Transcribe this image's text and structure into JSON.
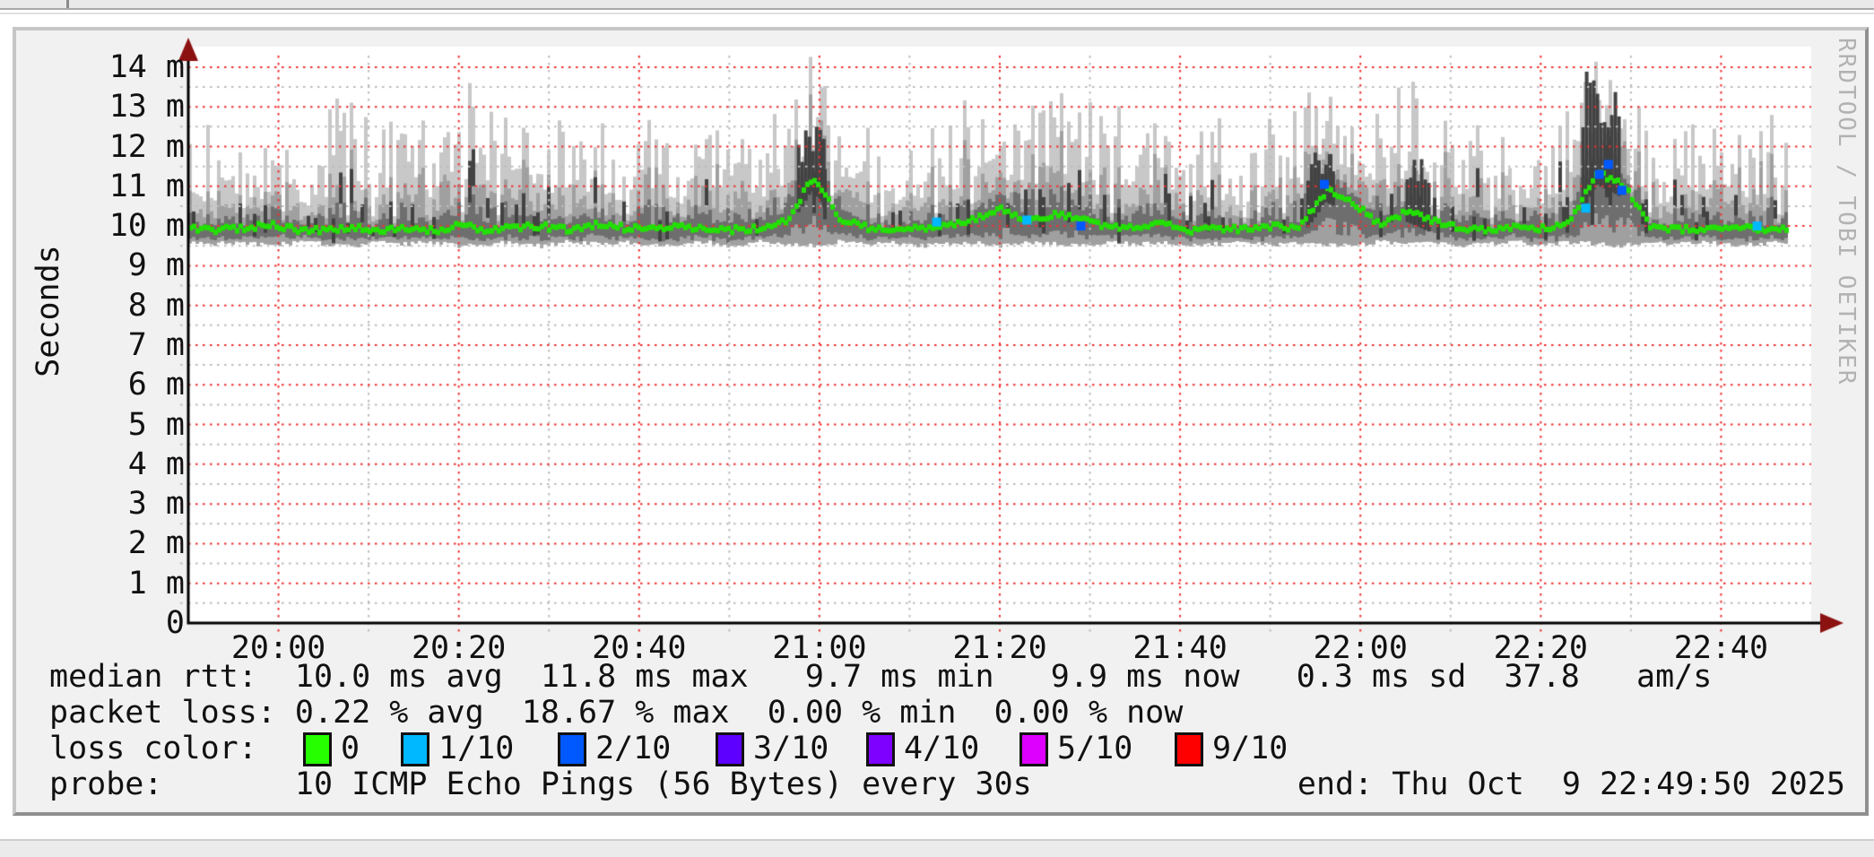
{
  "graph": {
    "y_axis_label": "Seconds",
    "watermark": "RRDTOOL / TOBI OETIKER",
    "legend": {
      "median_line": "median rtt:  10.0 ms avg  11.8 ms max   9.7 ms min   9.9 ms now   0.3 ms sd  37.8   am/s",
      "loss_line": "packet loss: 0.22 % avg  18.67 % max  0.00 % min  0.00 % now",
      "loss_color_label": "loss color:",
      "probe_line": "probe:       10 ICMP Echo Pings (56 Bytes) every 30s",
      "end_line": "end: Thu Oct  9 22:49:50 2025"
    },
    "loss_legend": [
      {
        "label": "0",
        "color": "#26ff00"
      },
      {
        "label": "1/10",
        "color": "#00b8ff"
      },
      {
        "label": "2/10",
        "color": "#0059ff"
      },
      {
        "label": "3/10",
        "color": "#5e00ff"
      },
      {
        "label": "4/10",
        "color": "#7e00ff"
      },
      {
        "label": "5/10",
        "color": "#dd00ff"
      },
      {
        "label": "9/10",
        "color": "#ff0000"
      }
    ]
  },
  "chart_data": {
    "type": "area",
    "title": "",
    "xlabel": "",
    "ylabel": "Seconds",
    "x_start_time": "19:50",
    "x_end_time": "22:49:50",
    "x_ticks": [
      "20:00",
      "20:20",
      "20:40",
      "21:00",
      "21:20",
      "21:40",
      "22:00",
      "22:20",
      "22:40"
    ],
    "x_tick_minutes": [
      10,
      30,
      50,
      70,
      90,
      110,
      130,
      150,
      170
    ],
    "x_minor_minutes": [
      20,
      40,
      60,
      80,
      100,
      120,
      140,
      160
    ],
    "y_ticks": [
      {
        "v": 14,
        "label": "14 m"
      },
      {
        "v": 13,
        "label": "13 m"
      },
      {
        "v": 12,
        "label": "12 m"
      },
      {
        "v": 11,
        "label": "11 m"
      },
      {
        "v": 10,
        "label": "10 m"
      },
      {
        "v": 9,
        "label": "9 m"
      },
      {
        "v": 8,
        "label": "8 m"
      },
      {
        "v": 7,
        "label": "7 m"
      },
      {
        "v": 6,
        "label": "6 m"
      },
      {
        "v": 5,
        "label": "5 m"
      },
      {
        "v": 4,
        "label": "4 m"
      },
      {
        "v": 3,
        "label": "3 m"
      },
      {
        "v": 2,
        "label": "2 m"
      },
      {
        "v": 1,
        "label": "1 m"
      },
      {
        "v": 0,
        "label": "0"
      }
    ],
    "ylim_ms": [
      0,
      14.45
    ],
    "grid": {
      "major_color": "#f03030",
      "minor_color": "#bcbcbc",
      "style": "dotted"
    },
    "sample_interval_min": 3,
    "duration_min": 180,
    "series": [
      {
        "name": "median_rtt_ms",
        "values": [
          9.95,
          9.9,
          9.95,
          10.05,
          9.9,
          9.9,
          9.95,
          9.9,
          9.95,
          9.9,
          10.0,
          9.9,
          9.95,
          10.0,
          9.9,
          10.05,
          9.95,
          9.9,
          10.0,
          9.95,
          9.9,
          9.95,
          10.1,
          11.2,
          10.2,
          9.95,
          9.9,
          9.95,
          10.0,
          10.2,
          10.45,
          10.1,
          10.3,
          10.2,
          9.95,
          10.0,
          10.1,
          9.9,
          9.95,
          9.9,
          10.0,
          9.95,
          10.9,
          10.6,
          10.0,
          10.4,
          10.1,
          9.95,
          9.9,
          10.0,
          9.95,
          10.05,
          11.35,
          11.0,
          9.95,
          9.9,
          9.95,
          9.9,
          9.95,
          9.9
        ]
      },
      {
        "name": "smoke_max_ms",
        "values": [
          12.6,
          12.0,
          11.6,
          12.2,
          11.8,
          12.3,
          13.3,
          12.0,
          12.5,
          12.2,
          12.8,
          13.9,
          12.4,
          13.0,
          12.2,
          12.6,
          12.0,
          12.4,
          11.9,
          12.3,
          12.1,
          12.5,
          12.9,
          14.0,
          12.6,
          12.2,
          12.0,
          12.4,
          12.8,
          13.2,
          13.0,
          12.5,
          13.4,
          12.8,
          12.3,
          13.6,
          12.6,
          12.1,
          12.4,
          11.9,
          12.3,
          12.7,
          13.3,
          12.9,
          12.4,
          13.5,
          13.8,
          12.6,
          12.2,
          12.5,
          12.0,
          12.6,
          14.3,
          13.2,
          12.2,
          11.9,
          12.4,
          12.8,
          12.2,
          13.4
        ]
      },
      {
        "name": "smoke_min_ms",
        "values": [
          9.6,
          9.55,
          9.6,
          9.5,
          9.6,
          9.55,
          9.5,
          9.6,
          9.55,
          9.6,
          9.5,
          9.55,
          9.6,
          9.5,
          9.6,
          9.55,
          9.6,
          9.5,
          9.55,
          9.6,
          9.5,
          9.6,
          9.55,
          9.5,
          9.6,
          9.55,
          9.6,
          9.5,
          9.55,
          9.6,
          9.5,
          9.6,
          9.55,
          9.5,
          9.6,
          9.55,
          9.6,
          9.5,
          9.55,
          9.6,
          9.5,
          9.6,
          9.55,
          9.5,
          9.6,
          9.55,
          9.6,
          9.5,
          9.55,
          9.6,
          9.5,
          9.6,
          9.55,
          9.5,
          9.6,
          9.55,
          9.6,
          9.5,
          9.55,
          9.6
        ]
      }
    ],
    "dark_spike_regions": [
      {
        "from_min": 67.5,
        "to_min": 70.5,
        "top_ms": 12.6
      },
      {
        "from_min": 124,
        "to_min": 127,
        "top_ms": 11.9
      },
      {
        "from_min": 135,
        "to_min": 137.5,
        "top_ms": 11.8
      },
      {
        "from_min": 154.5,
        "to_min": 158.5,
        "top_ms": 13.9
      }
    ],
    "loss_points": [
      {
        "minute": 83,
        "ms": 10.1,
        "level": "1/10"
      },
      {
        "minute": 93,
        "ms": 10.15,
        "level": "1/10"
      },
      {
        "minute": 99,
        "ms": 10.0,
        "level": "2/10"
      },
      {
        "minute": 126,
        "ms": 11.05,
        "level": "2/10"
      },
      {
        "minute": 155,
        "ms": 10.45,
        "level": "1/10"
      },
      {
        "minute": 156.5,
        "ms": 11.3,
        "level": "2/10"
      },
      {
        "minute": 157.5,
        "ms": 11.55,
        "level": "2/10"
      },
      {
        "minute": 159,
        "ms": 10.9,
        "level": "2/10"
      },
      {
        "minute": 174,
        "ms": 10.0,
        "level": "1/10"
      }
    ],
    "colors": {
      "median_line": "#22e004",
      "smoke_outer": "#c8c8c8",
      "smoke_mid": "#a0a0a0",
      "smoke_dark": "#6e6e6e",
      "smoke_core": "#424242",
      "axis": "#000000",
      "arrow": "#8c1111"
    },
    "stats": {
      "median_rtt": {
        "avg_ms": 10.0,
        "max_ms": 11.8,
        "min_ms": 9.7,
        "now_ms": 9.9,
        "sd_ms": 0.3,
        "am_s": 37.8
      },
      "packet_loss": {
        "avg_pct": 0.22,
        "max_pct": 18.67,
        "min_pct": 0.0,
        "now_pct": 0.0
      }
    },
    "probe": "10 ICMP Echo Pings (56 Bytes) every 30s",
    "end": "Thu Oct  9 22:49:50 2025"
  }
}
